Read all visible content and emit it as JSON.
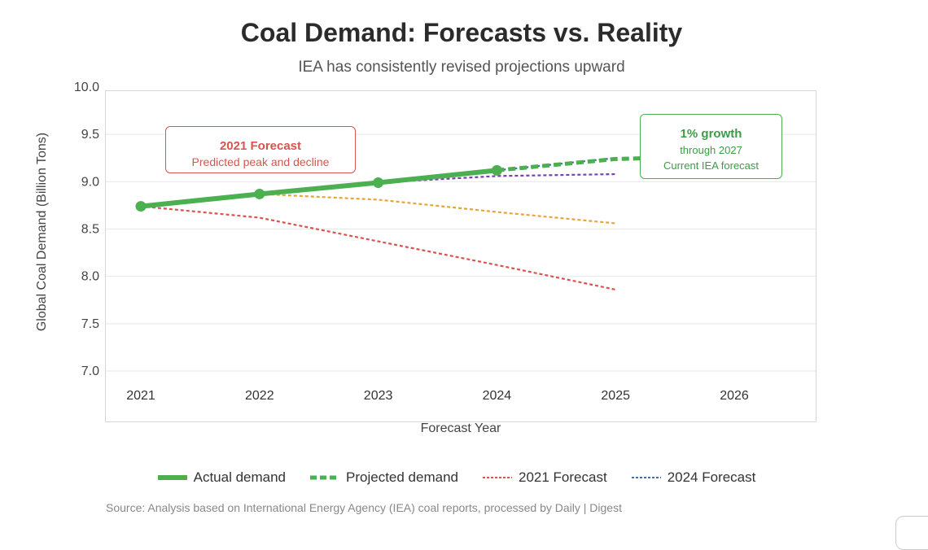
{
  "header": {
    "title": "Coal Demand: Forecasts vs. Reality",
    "subtitle": "IEA has consistently revised projections upward"
  },
  "chart_data": {
    "type": "line",
    "title": "Coal Demand: Forecasts vs. Reality",
    "subtitle": "IEA has consistently revised projections upward",
    "xlabel": "Forecast Year",
    "ylabel": "Global Coal Demand (Billion Tons)",
    "x": [
      2021,
      2022,
      2023,
      2024,
      2025,
      2026
    ],
    "xlim": [
      2021,
      2026
    ],
    "ylim": [
      7.0,
      10.0
    ],
    "yticks": [
      "7.0",
      "7.5",
      "8.0",
      "8.5",
      "9.0",
      "9.5",
      "10.0"
    ],
    "grid": true,
    "legend_position": "bottom",
    "series": [
      {
        "name": "Actual demand",
        "color": "#4caf50",
        "style": "solid",
        "markers": true,
        "legend": true,
        "points": [
          [
            2021,
            8.74
          ],
          [
            2022,
            8.87
          ],
          [
            2023,
            8.99
          ],
          [
            2024,
            9.12
          ]
        ]
      },
      {
        "name": "Projected demand",
        "color": "#4caf50",
        "style": "dashed",
        "legend": true,
        "points": [
          [
            2024,
            9.12
          ],
          [
            2025,
            9.24
          ],
          [
            2025.3,
            9.25
          ]
        ]
      },
      {
        "name": "2021 Forecast",
        "color": "#d9534f",
        "style": "dotted",
        "legend": true,
        "points": [
          [
            2021,
            8.74
          ],
          [
            2022,
            8.62
          ],
          [
            2023,
            8.37
          ],
          [
            2024,
            8.12
          ],
          [
            2025,
            7.86
          ]
        ]
      },
      {
        "color": "#e8a33a",
        "style": "dotted",
        "legend": false,
        "points": [
          [
            2022,
            8.87
          ],
          [
            2023,
            8.81
          ],
          [
            2024,
            8.68
          ],
          [
            2025,
            8.56
          ]
        ]
      },
      {
        "name": "2024 Forecast",
        "color": "#3f6fa8",
        "style": "dotted",
        "legend": true,
        "points": [
          [
            2024,
            9.12
          ],
          [
            2025,
            9.25
          ]
        ]
      },
      {
        "color": "#7b3fb5",
        "style": "dotted",
        "legend": false,
        "points": [
          [
            2023,
            8.99
          ],
          [
            2024,
            9.06
          ],
          [
            2025,
            9.08
          ]
        ]
      }
    ],
    "annotations": [
      {
        "title": "2021 Forecast",
        "lines": [
          "Predicted peak and decline"
        ],
        "color": "#d9534f"
      },
      {
        "title": "1% growth",
        "lines": [
          "through 2027",
          "Current IEA forecast"
        ],
        "color": "#3e9b45"
      }
    ]
  },
  "source": "Source: Analysis based on International Energy Agency (IEA) coal reports, processed by Daily | Digest"
}
